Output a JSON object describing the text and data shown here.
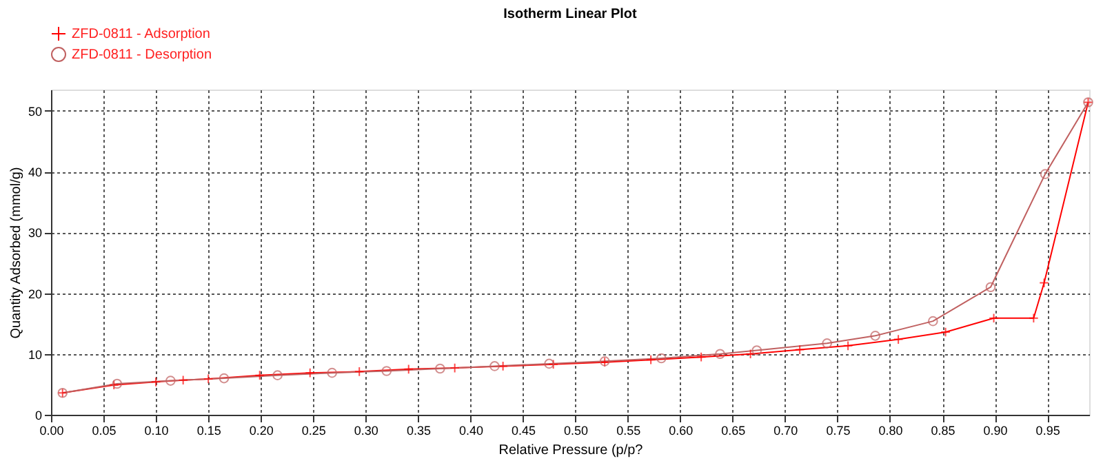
{
  "chart_data": {
    "type": "line",
    "title": "Isotherm Linear Plot",
    "xlabel": "Relative Pressure (p/p?",
    "ylabel": "Quantity Adsorbed (mmol/g)",
    "series": [
      {
        "name": "ZFD-0811 - Adsorption",
        "color": "#ff0000",
        "marker": "cross",
        "x": [
          0.011,
          0.06,
          0.1,
          0.126,
          0.15,
          0.199,
          0.247,
          0.294,
          0.341,
          0.385,
          0.431,
          0.479,
          0.528,
          0.572,
          0.62,
          0.667,
          0.714,
          0.76,
          0.808,
          0.853,
          0.899,
          0.937,
          0.947,
          0.989
        ],
        "values": [
          3.6,
          4.9,
          5.4,
          5.7,
          5.9,
          6.5,
          6.9,
          7.1,
          7.5,
          7.7,
          8.0,
          8.3,
          8.65,
          9.05,
          9.5,
          10.0,
          10.7,
          11.35,
          12.4,
          13.6,
          15.9,
          15.9,
          21.7,
          51.4
        ]
      },
      {
        "name": "ZFD-0811 - Desorption",
        "color": "#c06060",
        "marker": "circle",
        "x": [
          0.011,
          0.063,
          0.114,
          0.165,
          0.216,
          0.268,
          0.32,
          0.371,
          0.423,
          0.475,
          0.528,
          0.582,
          0.638,
          0.673,
          0.74,
          0.786,
          0.841,
          0.896,
          0.948,
          0.989
        ],
        "values": [
          3.6,
          5.1,
          5.6,
          6.0,
          6.5,
          6.9,
          7.2,
          7.6,
          8.0,
          8.4,
          8.8,
          9.3,
          10.0,
          10.6,
          11.75,
          13.0,
          15.4,
          21.0,
          39.6,
          51.4
        ]
      }
    ],
    "xlim": [
      0,
      0.99
    ],
    "ylim": [
      0,
      53.5
    ],
    "xticks": [
      {
        "value": 0,
        "label": "0.00"
      },
      {
        "value": 0.05,
        "label": "0.05"
      },
      {
        "value": 0.1,
        "label": "0.10"
      },
      {
        "value": 0.15,
        "label": "0.15"
      },
      {
        "value": 0.2,
        "label": "0.20"
      },
      {
        "value": 0.25,
        "label": "0.25"
      },
      {
        "value": 0.3,
        "label": "0.30"
      },
      {
        "value": 0.35,
        "label": "0.35"
      },
      {
        "value": 0.4,
        "label": "0.40"
      },
      {
        "value": 0.45,
        "label": "0.45"
      },
      {
        "value": 0.5,
        "label": "0.50"
      },
      {
        "value": 0.55,
        "label": "0.55"
      },
      {
        "value": 0.6,
        "label": "0.60"
      },
      {
        "value": 0.65,
        "label": "0.65"
      },
      {
        "value": 0.7,
        "label": "0.70"
      },
      {
        "value": 0.75,
        "label": "0.75"
      },
      {
        "value": 0.8,
        "label": "0.80"
      },
      {
        "value": 0.85,
        "label": "0.85"
      },
      {
        "value": 0.9,
        "label": "0.90"
      },
      {
        "value": 0.95,
        "label": "0.95"
      }
    ],
    "yticks": [
      0,
      10,
      20,
      30,
      40,
      50
    ],
    "grid": true,
    "legend": "top left",
    "line_style": "solid"
  }
}
